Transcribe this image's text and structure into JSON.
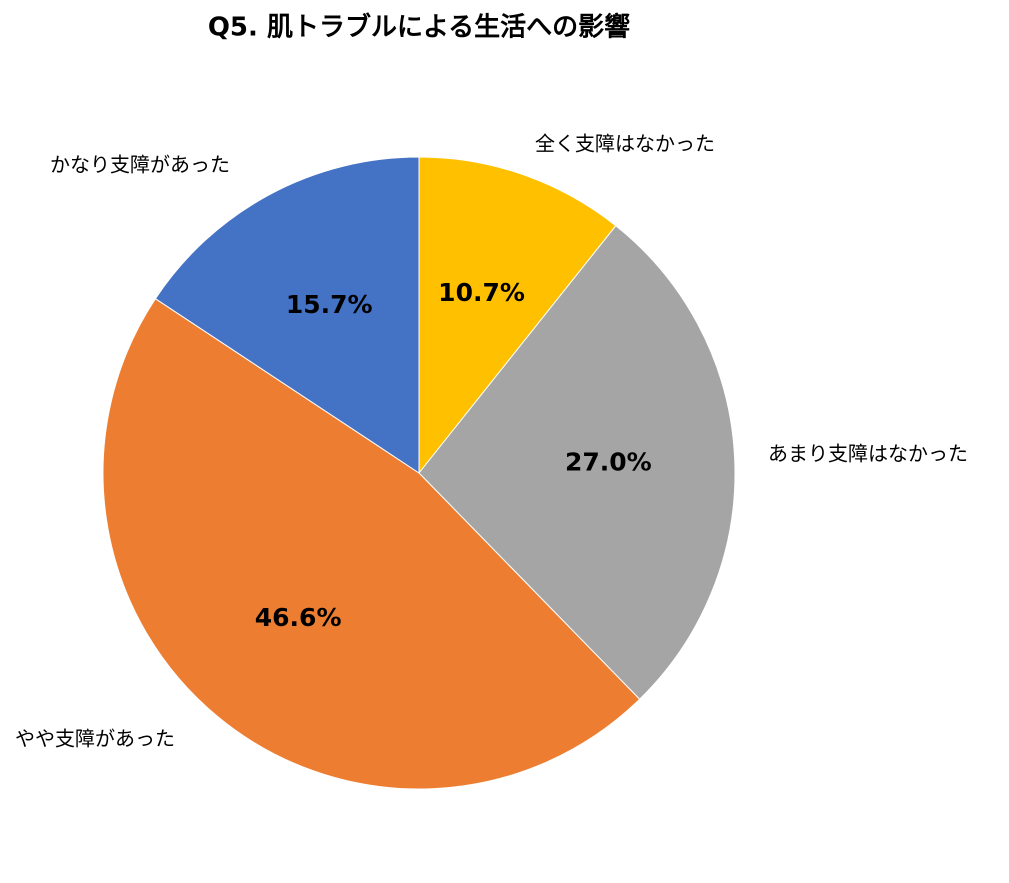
{
  "chart_data": {
    "type": "pie",
    "title": "Q5. 肌トラブルによる生活への影響",
    "categories": [
      "全く支障はなかった",
      "あまり支障はなかった",
      "やや支障があった",
      "かなり支障があった"
    ],
    "values": [
      10.7,
      27.0,
      46.6,
      15.7
    ],
    "value_labels": [
      "10.7%",
      "27.0%",
      "46.6%",
      "15.7%"
    ],
    "colors": [
      "#ffc000",
      "#a5a5a5",
      "#ed7d31",
      "#4472c4"
    ]
  }
}
